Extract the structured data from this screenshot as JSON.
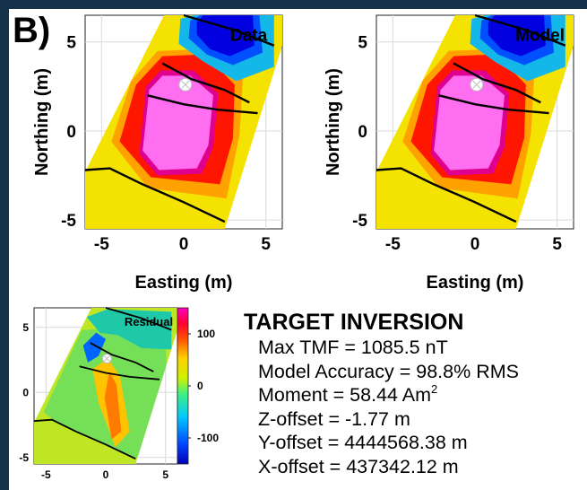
{
  "panel_label": "B)",
  "chart_data": [
    {
      "type": "heatmap",
      "panel_title": "Data",
      "xlabel": "Easting (m)",
      "ylabel": "Northing (m)",
      "xlim": [
        -6,
        6
      ],
      "ylim": [
        -5.5,
        6.5
      ],
      "xticks": [
        -5,
        0,
        5
      ],
      "yticks": [
        -5,
        0,
        5
      ],
      "grid": true,
      "colormap": "jet",
      "survey_lines": [
        [
          [
            -6,
            -2.2
          ],
          [
            -4.5,
            -2.1
          ],
          [
            -2.5,
            -3.0
          ],
          [
            0,
            -4.0
          ],
          [
            2.5,
            -5.1
          ]
        ],
        [
          [
            0,
            6.5
          ],
          [
            3,
            5.7
          ],
          [
            5.5,
            4.8
          ]
        ],
        [
          [
            -1.3,
            3.8
          ],
          [
            0.5,
            2.9
          ],
          [
            2.5,
            2.3
          ],
          [
            4,
            1.6
          ]
        ],
        [
          [
            -2.2,
            2.0
          ],
          [
            0,
            1.5
          ],
          [
            2,
            1.2
          ],
          [
            4.5,
            1.0
          ]
        ]
      ],
      "source_marker": [
        0.1,
        2.6
      ]
    },
    {
      "type": "heatmap",
      "panel_title": "Model",
      "xlabel": "Easting (m)",
      "ylabel": "Northing (m)",
      "xlim": [
        -6,
        6
      ],
      "ylim": [
        -5.5,
        6.5
      ],
      "xticks": [
        -5,
        0,
        5
      ],
      "yticks": [
        -5,
        0,
        5
      ],
      "grid": true,
      "colormap": "jet",
      "survey_lines": [
        [
          [
            -6,
            -2.2
          ],
          [
            -4.5,
            -2.1
          ],
          [
            -2.5,
            -3.0
          ],
          [
            0,
            -4.0
          ],
          [
            2.5,
            -5.1
          ]
        ],
        [
          [
            0,
            6.5
          ],
          [
            3,
            5.7
          ],
          [
            5.5,
            4.8
          ]
        ],
        [
          [
            -1.3,
            3.8
          ],
          [
            0.5,
            2.9
          ],
          [
            2.5,
            2.3
          ],
          [
            4,
            1.6
          ]
        ],
        [
          [
            -2.2,
            2.0
          ],
          [
            0,
            1.5
          ],
          [
            2,
            1.2
          ],
          [
            4.5,
            1.0
          ]
        ]
      ],
      "source_marker": [
        0.1,
        2.6
      ]
    },
    {
      "type": "heatmap",
      "panel_title": "Residual",
      "xlim": [
        -6,
        6
      ],
      "ylim": [
        -5.5,
        6.5
      ],
      "xticks": [
        -5,
        0,
        5
      ],
      "yticks": [
        -5,
        0,
        5
      ],
      "grid": true,
      "colormap": "jet",
      "colorbar": {
        "range": [
          -150,
          150
        ],
        "ticks": [
          100,
          0,
          -100
        ]
      },
      "survey_lines": [
        [
          [
            -6,
            -2.2
          ],
          [
            -4.5,
            -2.1
          ],
          [
            -2.5,
            -3.0
          ],
          [
            0,
            -4.0
          ],
          [
            2.5,
            -5.1
          ]
        ],
        [
          [
            0,
            6.5
          ],
          [
            3,
            5.7
          ],
          [
            5.5,
            4.8
          ]
        ],
        [
          [
            -1.3,
            3.8
          ],
          [
            0.5,
            2.9
          ],
          [
            2.5,
            2.3
          ],
          [
            4,
            1.6
          ]
        ],
        [
          [
            -2.2,
            2.0
          ],
          [
            0,
            1.5
          ],
          [
            2,
            1.2
          ],
          [
            4.5,
            1.0
          ]
        ]
      ],
      "source_marker": [
        0.1,
        2.6
      ]
    }
  ],
  "summary": {
    "title": "TARGET INVERSION",
    "max_tmf": "Max TMF = 1085.5 nT",
    "accuracy": "Model Accuracy = 98.8% RMS",
    "moment_text": "Moment = 58.44 Am",
    "moment_exponent": "2",
    "z_offset": "Z-offset = -1.77 m",
    "y_offset": "Y-offset = 4444568.38 m",
    "x_offset": "X-offset = 437342.12 m"
  }
}
